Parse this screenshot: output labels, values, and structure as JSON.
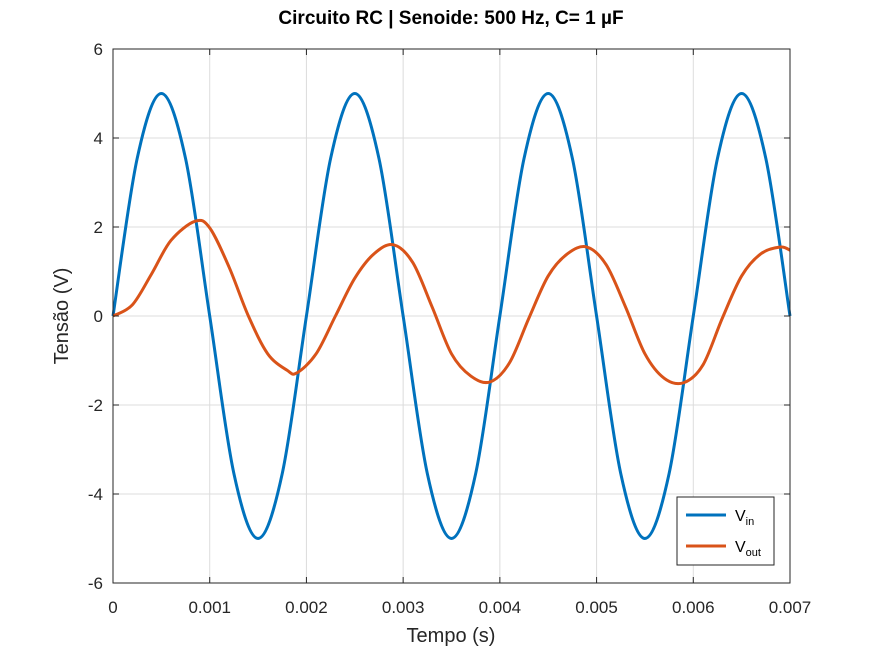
{
  "chart_data": {
    "type": "line",
    "title": "Circuito RC | Senoide: 500 Hz, C= 1 µF",
    "xlabel": "Tempo (s)",
    "ylabel": "Tensão (V)",
    "xlim": [
      0,
      0.007
    ],
    "ylim": [
      -6,
      6
    ],
    "xticks": [
      "0",
      "0.001",
      "0.002",
      "0.003",
      "0.004",
      "0.005",
      "0.006",
      "0.007"
    ],
    "yticks": [
      "-6",
      "-4",
      "-2",
      "0",
      "2",
      "4",
      "6"
    ],
    "grid": true,
    "legend_position": "bottom-right",
    "series": [
      {
        "name": "V",
        "subscript": "in",
        "color": "#0072BD",
        "x": [
          0,
          0.00025,
          0.0005,
          0.00075,
          0.001,
          0.00125,
          0.0015,
          0.00175,
          0.002,
          0.00225,
          0.0025,
          0.00275,
          0.003,
          0.00325,
          0.0035,
          0.00375,
          0.004,
          0.00425,
          0.0045,
          0.00475,
          0.005,
          0.00525,
          0.0055,
          0.00575,
          0.006,
          0.00625,
          0.0065,
          0.00675,
          0.007
        ],
        "y": [
          0,
          3.54,
          5,
          3.54,
          0,
          -3.54,
          -5,
          -3.54,
          0,
          3.54,
          5,
          3.54,
          0,
          -3.54,
          -5,
          -3.54,
          0,
          3.54,
          5,
          3.54,
          0,
          -3.54,
          -5,
          -3.54,
          0,
          3.54,
          5,
          3.54,
          0
        ]
      },
      {
        "name": "V",
        "subscript": "out",
        "color": "#D95319",
        "x": [
          0,
          0.0002,
          0.0004,
          0.0006,
          0.00085,
          0.001,
          0.0012,
          0.0014,
          0.0016,
          0.0018,
          0.0019,
          0.0021,
          0.0023,
          0.0025,
          0.0027,
          0.0029,
          0.0031,
          0.0033,
          0.0035,
          0.0037,
          0.0039,
          0.0041,
          0.0043,
          0.0045,
          0.0047,
          0.0049,
          0.0051,
          0.0053,
          0.0055,
          0.0057,
          0.0059,
          0.0061,
          0.0063,
          0.0065,
          0.0067,
          0.0069,
          0.007
        ],
        "y": [
          0,
          0.25,
          0.95,
          1.7,
          2.13,
          1.98,
          1.1,
          0.0,
          -0.85,
          -1.22,
          -1.28,
          -0.85,
          0.0,
          0.85,
          1.4,
          1.6,
          1.2,
          0.2,
          -0.85,
          -1.35,
          -1.48,
          -1.05,
          -0.05,
          0.9,
          1.4,
          1.55,
          1.15,
          0.2,
          -0.85,
          -1.4,
          -1.5,
          -1.1,
          -0.05,
          0.9,
          1.4,
          1.55,
          1.48
        ]
      }
    ]
  }
}
